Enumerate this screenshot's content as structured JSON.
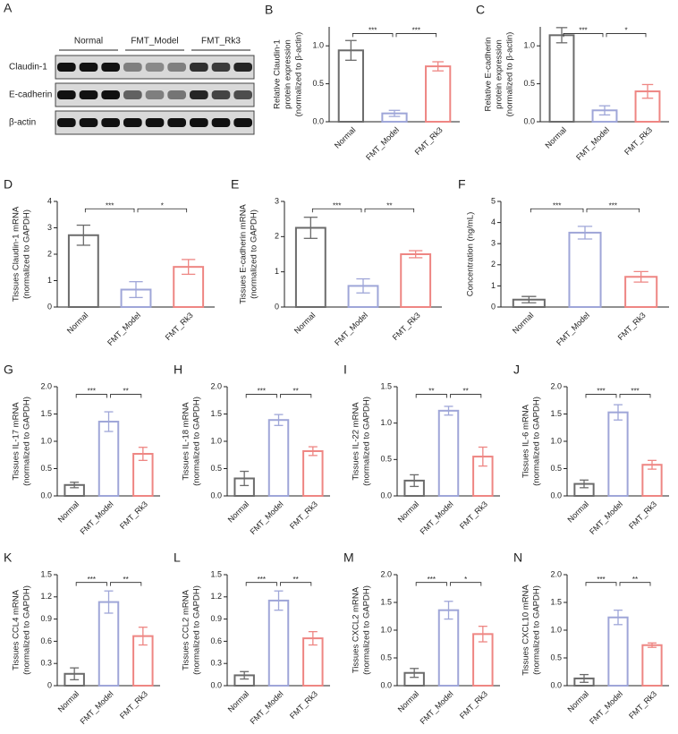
{
  "blot": {
    "panel": "A",
    "groups": [
      "Normal",
      "FMT_Model",
      "FMT_Rk3"
    ],
    "rows": [
      "Claudin-1",
      "E-cadherin",
      "β-actin"
    ]
  },
  "chart_data": [
    {
      "type": "bar",
      "panel": "B",
      "ylabel": [
        "Relative Claudin-1",
        "protein expression",
        "(normalized to β-actin)"
      ],
      "categories": [
        "Normal",
        "FMT_Model",
        "FMT_Rk3"
      ],
      "values": [
        0.94,
        0.11,
        0.73
      ],
      "errors": [
        0.13,
        0.04,
        0.06
      ],
      "colors": [
        "#6b6b6b",
        "#9fa6d8",
        "#ee8683"
      ],
      "ylim": [
        0,
        1.25
      ],
      "yticks": [
        {
          "value": 0,
          "label": "0.0"
        },
        0.5,
        {
          "value": 1,
          "label": "1.0"
        }
      ],
      "pairs": [
        {
          "between": [
            "Normal",
            "FMT_Model"
          ],
          "label": "***"
        },
        {
          "between": [
            "FMT_Model",
            "FMT_Rk3"
          ],
          "label": "***"
        }
      ]
    },
    {
      "type": "bar",
      "panel": "C",
      "ylabel": [
        "Relative E-cadherin",
        "protein expression",
        "(normalized to β-actin)"
      ],
      "categories": [
        "Normal",
        "FMT_Model",
        "FMT_Rk3"
      ],
      "values": [
        1.14,
        0.15,
        0.4
      ],
      "errors": [
        0.1,
        0.06,
        0.09
      ],
      "colors": [
        "#6b6b6b",
        "#9fa6d8",
        "#ee8683"
      ],
      "ylim": [
        0,
        1.25
      ],
      "yticks": [
        {
          "value": 0,
          "label": "0.0"
        },
        0.5,
        {
          "value": 1,
          "label": "1.0"
        }
      ],
      "pairs": [
        {
          "between": [
            "Normal",
            "FMT_Model"
          ],
          "label": "***"
        },
        {
          "between": [
            "FMT_Model",
            "FMT_Rk3"
          ],
          "label": "*"
        }
      ]
    },
    {
      "type": "bar",
      "panel": "D",
      "ylabel": [
        "Tissues Claudin-1 mRNA",
        "(normalized to GAPDH)"
      ],
      "categories": [
        "Normal",
        "FMT_Model",
        "FMT_Rk3"
      ],
      "values": [
        2.72,
        0.66,
        1.52
      ],
      "errors": [
        0.38,
        0.3,
        0.28
      ],
      "colors": [
        "#6b6b6b",
        "#9fa6d8",
        "#ee8683"
      ],
      "ylim": [
        0,
        4
      ],
      "yticks": [
        0,
        1,
        2,
        3,
        4
      ],
      "pairs": [
        {
          "between": [
            "Normal",
            "FMT_Model"
          ],
          "label": "***"
        },
        {
          "between": [
            "FMT_Model",
            "FMT_Rk3"
          ],
          "label": "*"
        }
      ]
    },
    {
      "type": "bar",
      "panel": "E",
      "ylabel": [
        "Tissues E-cadherin mRNA",
        "(normalized to GAPDH)"
      ],
      "categories": [
        "Normal",
        "FMT_Model",
        "FMT_Rk3"
      ],
      "values": [
        2.25,
        0.6,
        1.5
      ],
      "errors": [
        0.3,
        0.2,
        0.1
      ],
      "colors": [
        "#6b6b6b",
        "#9fa6d8",
        "#ee8683"
      ],
      "ylim": [
        0,
        3
      ],
      "yticks": [
        0,
        1,
        2,
        3
      ],
      "pairs": [
        {
          "between": [
            "Normal",
            "FMT_Model"
          ],
          "label": "***"
        },
        {
          "between": [
            "FMT_Model",
            "FMT_Rk3"
          ],
          "label": "**"
        }
      ]
    },
    {
      "type": "bar",
      "panel": "F",
      "ylabel": [
        "Concentration (ng/mL)"
      ],
      "categories": [
        "Normal",
        "FMT_Model",
        "FMT_Rk3"
      ],
      "values": [
        0.35,
        3.52,
        1.43
      ],
      "errors": [
        0.15,
        0.3,
        0.25
      ],
      "colors": [
        "#6b6b6b",
        "#9fa6d8",
        "#ee8683"
      ],
      "ylim": [
        0,
        5
      ],
      "yticks": [
        0,
        1,
        2,
        3,
        4,
        5
      ],
      "pairs": [
        {
          "between": [
            "Normal",
            "FMT_Model"
          ],
          "label": "***"
        },
        {
          "between": [
            "FMT_Model",
            "FMT_Rk3"
          ],
          "label": "***"
        }
      ]
    },
    {
      "type": "bar",
      "panel": "G",
      "ylabel": [
        "Tissues IL-17 mRNA",
        "(normalized to GAPDH)"
      ],
      "categories": [
        "Normal",
        "FMT_Model",
        "FMT_Rk3"
      ],
      "values": [
        0.2,
        1.36,
        0.77
      ],
      "errors": [
        0.05,
        0.18,
        0.12
      ],
      "colors": [
        "#6b6b6b",
        "#9fa6d8",
        "#ee8683"
      ],
      "ylim": [
        0,
        2
      ],
      "yticks": [
        {
          "value": 0,
          "label": "0.0"
        },
        0.5,
        {
          "value": 1,
          "label": "1.0"
        },
        1.5,
        {
          "value": 2,
          "label": "2.0"
        }
      ],
      "pairs": [
        {
          "between": [
            "Normal",
            "FMT_Model"
          ],
          "label": "***"
        },
        {
          "between": [
            "FMT_Model",
            "FMT_Rk3"
          ],
          "label": "**"
        }
      ]
    },
    {
      "type": "bar",
      "panel": "H",
      "ylabel": [
        "Tissues IL-18 mRNA",
        "(normalized to GAPDH)"
      ],
      "categories": [
        "Normal",
        "FMT_Model",
        "FMT_Rk3"
      ],
      "values": [
        0.32,
        1.39,
        0.82
      ],
      "errors": [
        0.13,
        0.1,
        0.08
      ],
      "colors": [
        "#6b6b6b",
        "#9fa6d8",
        "#ee8683"
      ],
      "ylim": [
        0,
        2
      ],
      "yticks": [
        {
          "value": 0,
          "label": "0.0"
        },
        0.5,
        {
          "value": 1,
          "label": "1.0"
        },
        1.5,
        {
          "value": 2,
          "label": "2.0"
        }
      ],
      "pairs": [
        {
          "between": [
            "Normal",
            "FMT_Model"
          ],
          "label": "***"
        },
        {
          "between": [
            "FMT_Model",
            "FMT_Rk3"
          ],
          "label": "**"
        }
      ]
    },
    {
      "type": "bar",
      "panel": "I",
      "ylabel": [
        "Tissues IL-22 mRNA",
        "(normalized to GAPDH)"
      ],
      "categories": [
        "Normal",
        "FMT_Model",
        "FMT_Rk3"
      ],
      "values": [
        0.21,
        1.17,
        0.54
      ],
      "errors": [
        0.08,
        0.06,
        0.13
      ],
      "colors": [
        "#6b6b6b",
        "#9fa6d8",
        "#ee8683"
      ],
      "ylim": [
        0,
        1.5
      ],
      "yticks": [
        {
          "value": 0,
          "label": "0.0"
        },
        0.5,
        {
          "value": 1,
          "label": "1.0"
        },
        1.5
      ],
      "pairs": [
        {
          "between": [
            "Normal",
            "FMT_Model"
          ],
          "label": "**"
        },
        {
          "between": [
            "FMT_Model",
            "FMT_Rk3"
          ],
          "label": "**"
        }
      ]
    },
    {
      "type": "bar",
      "panel": "J",
      "ylabel": [
        "Tissues IL-6 mRNA",
        "(normalized to GAPDH)"
      ],
      "categories": [
        "Normal",
        "FMT_Model",
        "FMT_Rk3"
      ],
      "values": [
        0.22,
        1.53,
        0.57
      ],
      "errors": [
        0.07,
        0.14,
        0.08
      ],
      "colors": [
        "#6b6b6b",
        "#9fa6d8",
        "#ee8683"
      ],
      "ylim": [
        0,
        2
      ],
      "yticks": [
        {
          "value": 0,
          "label": "0.0"
        },
        0.5,
        {
          "value": 1,
          "label": "1.0"
        },
        1.5,
        {
          "value": 2,
          "label": "2.0"
        }
      ],
      "pairs": [
        {
          "between": [
            "Normal",
            "FMT_Model"
          ],
          "label": "***"
        },
        {
          "between": [
            "FMT_Model",
            "FMT_Rk3"
          ],
          "label": "***"
        }
      ]
    },
    {
      "type": "bar",
      "panel": "K",
      "ylabel": [
        "Tissues CCL4 mRNA",
        "(normalized to GAPDH)"
      ],
      "categories": [
        "Normal",
        "FMT_Model",
        "FMT_Rk3"
      ],
      "values": [
        0.16,
        1.13,
        0.67
      ],
      "errors": [
        0.08,
        0.15,
        0.12
      ],
      "colors": [
        "#6b6b6b",
        "#9fa6d8",
        "#ee8683"
      ],
      "ylim": [
        0,
        1.5
      ],
      "yticks": [
        0,
        0.3,
        0.6,
        0.9,
        1.2,
        1.5
      ],
      "pairs": [
        {
          "between": [
            "Normal",
            "FMT_Model"
          ],
          "label": "***"
        },
        {
          "between": [
            "FMT_Model",
            "FMT_Rk3"
          ],
          "label": "**"
        }
      ]
    },
    {
      "type": "bar",
      "panel": "L",
      "ylabel": [
        "Tissues CCL2 mRNA",
        "(normalized to GAPDH)"
      ],
      "categories": [
        "Normal",
        "FMT_Model",
        "FMT_Rk3"
      ],
      "values": [
        0.14,
        1.15,
        0.64
      ],
      "errors": [
        0.05,
        0.13,
        0.09
      ],
      "colors": [
        "#6b6b6b",
        "#9fa6d8",
        "#ee8683"
      ],
      "ylim": [
        0,
        1.5
      ],
      "yticks": [
        {
          "value": 0,
          "label": "0.0"
        },
        0.3,
        0.6,
        0.9,
        1.2,
        1.5
      ],
      "pairs": [
        {
          "between": [
            "Normal",
            "FMT_Model"
          ],
          "label": "***"
        },
        {
          "between": [
            "FMT_Model",
            "FMT_Rk3"
          ],
          "label": "**"
        }
      ]
    },
    {
      "type": "bar",
      "panel": "M",
      "ylabel": [
        "Tissues CXCL2 mRNA",
        "(normalized to GAPDH)"
      ],
      "categories": [
        "Normal",
        "FMT_Model",
        "FMT_Rk3"
      ],
      "values": [
        0.23,
        1.36,
        0.93
      ],
      "errors": [
        0.08,
        0.16,
        0.14
      ],
      "colors": [
        "#6b6b6b",
        "#9fa6d8",
        "#ee8683"
      ],
      "ylim": [
        0,
        2
      ],
      "yticks": [
        {
          "value": 0,
          "label": "0.0"
        },
        0.5,
        {
          "value": 1,
          "label": "1.0"
        },
        1.5,
        {
          "value": 2,
          "label": "2.0"
        }
      ],
      "pairs": [
        {
          "between": [
            "Normal",
            "FMT_Model"
          ],
          "label": "***"
        },
        {
          "between": [
            "FMT_Model",
            "FMT_Rk3"
          ],
          "label": "*"
        }
      ]
    },
    {
      "type": "bar",
      "panel": "N",
      "ylabel": [
        "Tissues CXCL10 mRNA",
        "(normalized to GAPDH)"
      ],
      "categories": [
        "Normal",
        "FMT_Model",
        "FMT_Rk3"
      ],
      "values": [
        0.13,
        1.23,
        0.73
      ],
      "errors": [
        0.07,
        0.13,
        0.04
      ],
      "colors": [
        "#6b6b6b",
        "#9fa6d8",
        "#ee8683"
      ],
      "ylim": [
        0,
        2
      ],
      "yticks": [
        {
          "value": 0,
          "label": "0.0"
        },
        0.5,
        {
          "value": 1,
          "label": "1.0"
        },
        1.5,
        {
          "value": 2,
          "label": "2.0"
        }
      ],
      "pairs": [
        {
          "between": [
            "Normal",
            "FMT_Model"
          ],
          "label": "***"
        },
        {
          "between": [
            "FMT_Model",
            "FMT_Rk3"
          ],
          "label": "**"
        }
      ]
    }
  ]
}
